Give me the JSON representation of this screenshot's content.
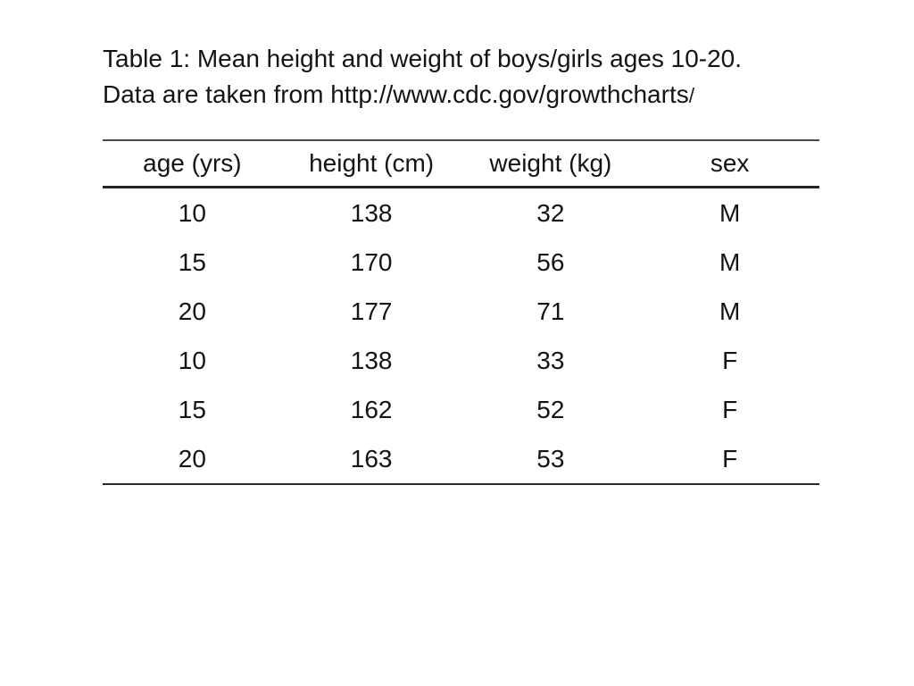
{
  "caption": {
    "line1": "Table 1: Mean height and weight of boys/girls ages 10-20.",
    "line2": "Data are taken from http://www.cdc.gov/growthcharts",
    "line2_trailing_slash": "/"
  },
  "chart_data": {
    "type": "table",
    "title": "Table 1: Mean height and weight of boys/girls ages 10-20. Data are taken from http://www.cdc.gov/growthcharts/",
    "columns": [
      "age (yrs)",
      "height (cm)",
      "weight (kg)",
      "sex"
    ],
    "rows": [
      [
        10,
        138,
        32,
        "M"
      ],
      [
        15,
        170,
        56,
        "M"
      ],
      [
        20,
        177,
        71,
        "M"
      ],
      [
        10,
        138,
        33,
        "F"
      ],
      [
        15,
        162,
        52,
        "F"
      ],
      [
        20,
        163,
        53,
        "F"
      ]
    ]
  },
  "colors": {
    "background": "#ffffff",
    "text": "#141414",
    "rule_top": "#4a4a4a",
    "rule_header": "#262626",
    "rule_bottom": "#2b2b2b"
  }
}
